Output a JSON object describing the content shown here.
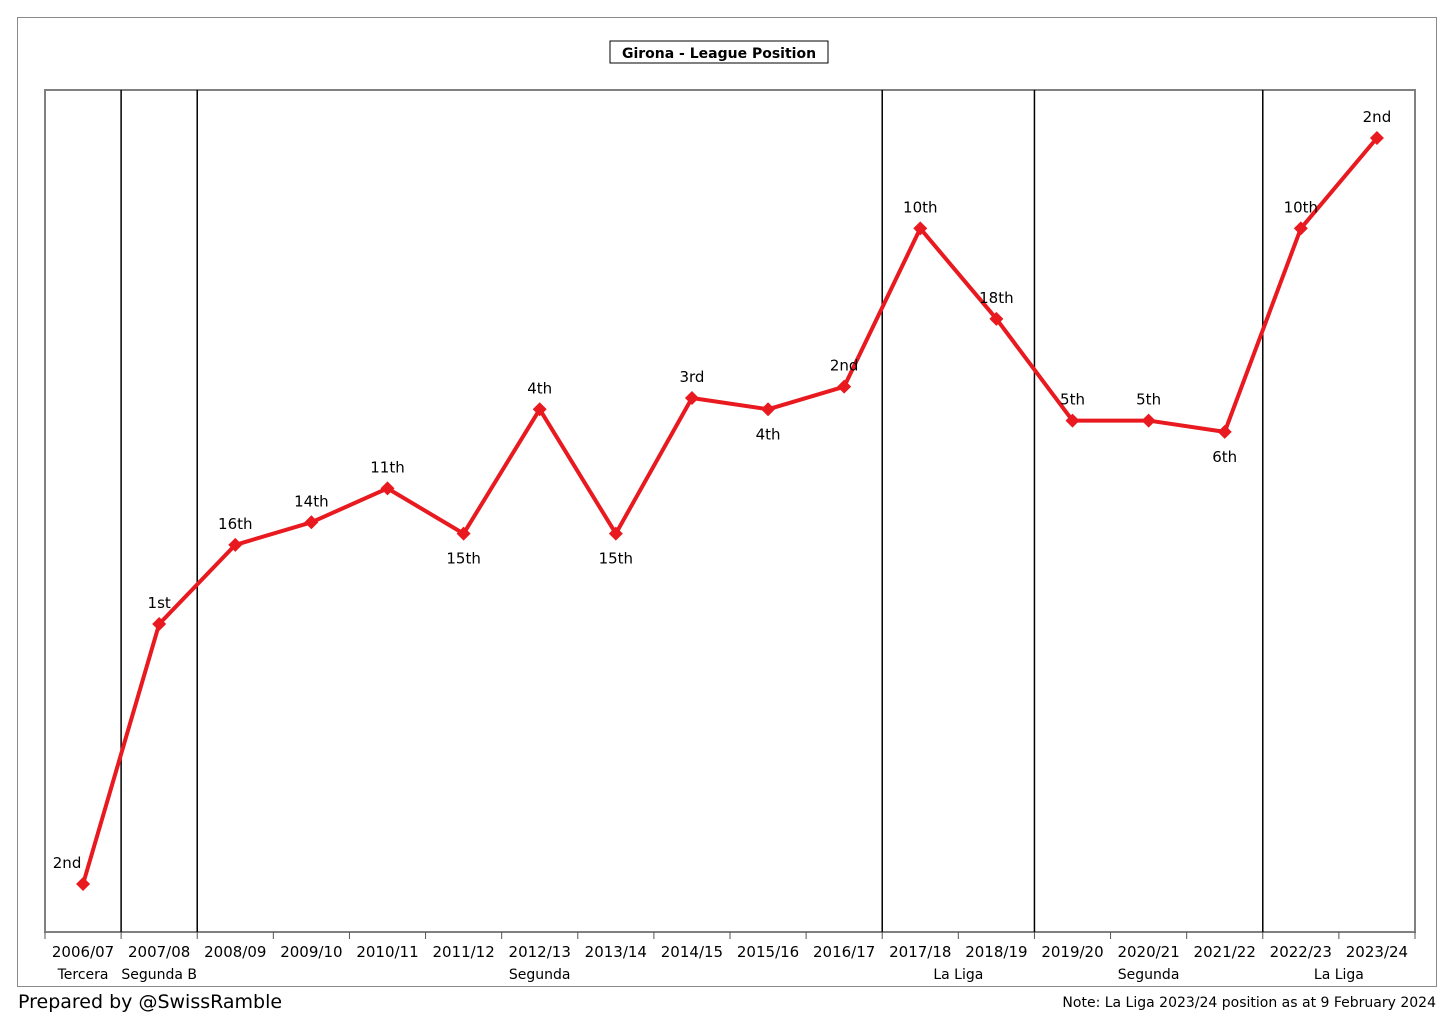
{
  "footer": {
    "credit": "Prepared by @SwissRamble",
    "note": "Note: La Liga 2023/24 position as at 9 February 2024"
  },
  "chart_data": {
    "type": "line",
    "title": "Girona - League Position",
    "categories": [
      "2006/07",
      "2007/08",
      "2008/09",
      "2009/10",
      "2010/11",
      "2011/12",
      "2012/13",
      "2013/14",
      "2014/15",
      "2015/16",
      "2016/17",
      "2017/18",
      "2018/19",
      "2019/20",
      "2020/21",
      "2021/22",
      "2022/23",
      "2023/24"
    ],
    "divisions": [
      {
        "name": "Tercera",
        "from": 0,
        "to": 0
      },
      {
        "name": "Segunda B",
        "from": 1,
        "to": 1
      },
      {
        "name": "Segunda",
        "from": 2,
        "to": 10
      },
      {
        "name": "La Liga",
        "from": 11,
        "to": 12
      },
      {
        "name": "Segunda",
        "from": 13,
        "to": 15
      },
      {
        "name": "La Liga",
        "from": 16,
        "to": 17
      }
    ],
    "series": [
      {
        "values": [
          2,
          1,
          16,
          14,
          11,
          15,
          4,
          15,
          3,
          4,
          2,
          10,
          18,
          5,
          5,
          6,
          10,
          2
        ],
        "labels": [
          "2nd",
          "1st",
          "16th",
          "14th",
          "11th",
          "15th",
          "4th",
          "15th",
          "3rd",
          "4th",
          "2nd",
          "10th",
          "18th",
          "5th",
          "5th",
          "6th",
          "10th",
          "2nd"
        ],
        "color": "#e8191f",
        "marker": "diamond"
      }
    ],
    "grid": false,
    "legend": "none"
  }
}
